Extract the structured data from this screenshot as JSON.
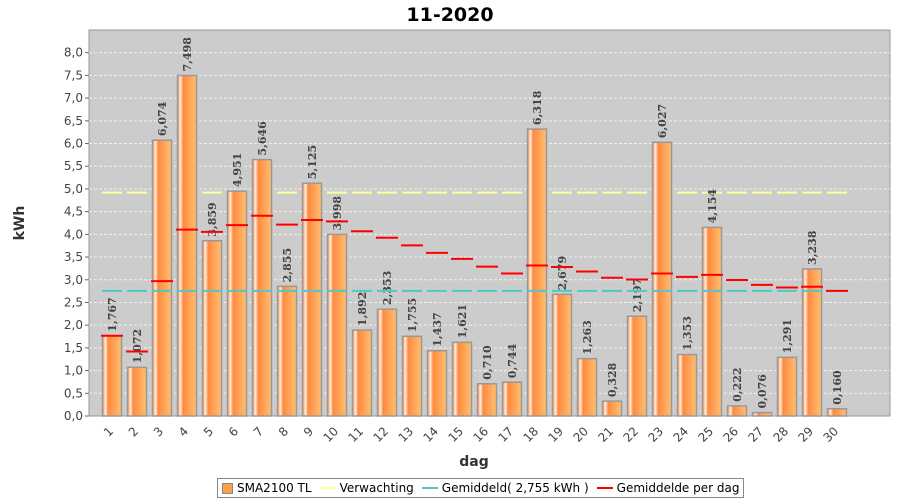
{
  "chart_data": {
    "type": "bar",
    "title": "11-2020",
    "xlabel": "dag",
    "ylabel": "kWh",
    "ylim": [
      0,
      8.5
    ],
    "yticks": [
      "0,0",
      "0,5",
      "1,0",
      "1,5",
      "2,0",
      "2,5",
      "3,0",
      "3,5",
      "4,0",
      "4,5",
      "5,0",
      "5,5",
      "6,0",
      "6,5",
      "7,0",
      "7,5",
      "8,0"
    ],
    "categories": [
      "1",
      "2",
      "3",
      "4",
      "5",
      "6",
      "7",
      "8",
      "9",
      "10",
      "11",
      "12",
      "13",
      "14",
      "15",
      "16",
      "17",
      "18",
      "19",
      "20",
      "21",
      "22",
      "23",
      "24",
      "25",
      "26",
      "27",
      "28",
      "29",
      "30"
    ],
    "series": [
      {
        "name": "SMA2100 TL",
        "type": "bar",
        "color": "#ff9f4a",
        "values": [
          1.767,
          1.072,
          6.074,
          7.498,
          3.859,
          4.951,
          5.646,
          2.855,
          5.125,
          3.998,
          1.892,
          2.353,
          1.755,
          1.437,
          1.621,
          0.71,
          0.744,
          6.318,
          2.679,
          1.263,
          0.328,
          2.197,
          6.027,
          1.353,
          4.154,
          0.222,
          0.076,
          1.291,
          3.238,
          0.16
        ],
        "labels": [
          "1,767",
          "1,072",
          "6,074",
          "7,498",
          "3,859",
          "4,951",
          "5,646",
          "2,855",
          "5,125",
          "3,998",
          "1,892",
          "2,353",
          "1,755",
          "1,437",
          "1,621",
          "0,710",
          "0,744",
          "6,318",
          "2,679",
          "1,263",
          "0,328",
          "2,197",
          "6,027",
          "1,353",
          "4,154",
          "0,222",
          "0,076",
          "1,291",
          "3,238",
          "0,160"
        ]
      },
      {
        "name": "Verwachting",
        "type": "line",
        "color": "#ffff99",
        "value": 4.92
      },
      {
        "name": "Gemiddeld( 2,755 kWh )",
        "type": "line",
        "color": "#4cc9c9",
        "value": 2.755
      },
      {
        "name": "Gemiddelde per dag",
        "type": "step",
        "color": "#ff0000",
        "values": [
          1.767,
          1.42,
          2.971,
          4.103,
          4.054,
          4.204,
          4.41,
          4.215,
          4.316,
          4.285,
          4.067,
          3.924,
          3.757,
          3.592,
          3.46,
          3.288,
          3.139,
          3.315,
          3.282,
          3.181,
          3.045,
          3.006,
          3.138,
          3.063,
          3.107,
          2.996,
          2.888,
          2.831,
          2.845,
          2.755
        ]
      }
    ],
    "grid": true,
    "legend": "bottom"
  }
}
